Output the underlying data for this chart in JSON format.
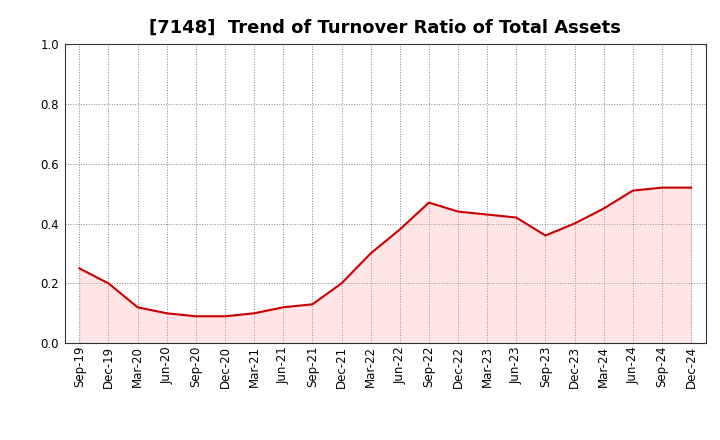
{
  "title": "[7148]  Trend of Turnover Ratio of Total Assets",
  "x_labels": [
    "Sep-19",
    "Dec-19",
    "Mar-20",
    "Jun-20",
    "Sep-20",
    "Dec-20",
    "Mar-21",
    "Jun-21",
    "Sep-21",
    "Dec-21",
    "Mar-22",
    "Jun-22",
    "Sep-22",
    "Dec-22",
    "Mar-23",
    "Jun-23",
    "Sep-23",
    "Dec-23",
    "Mar-24",
    "Jun-24",
    "Sep-24",
    "Dec-24"
  ],
  "y_values": [
    0.25,
    0.2,
    0.12,
    0.1,
    0.09,
    0.09,
    0.1,
    0.12,
    0.13,
    0.2,
    0.3,
    0.38,
    0.47,
    0.44,
    0.43,
    0.42,
    0.36,
    0.4,
    0.45,
    0.51,
    0.52,
    0.52
  ],
  "line_color": "#cc0000",
  "line_width": 1.5,
  "ylim": [
    0.0,
    1.0
  ],
  "yticks": [
    0.0,
    0.2,
    0.4,
    0.6,
    0.8,
    1.0
  ],
  "background_color": "#ffffff",
  "grid_color": "#888888",
  "title_fontsize": 13,
  "tick_fontsize": 8.5,
  "fill_color": "#ff9999",
  "fill_alpha": 0.25
}
